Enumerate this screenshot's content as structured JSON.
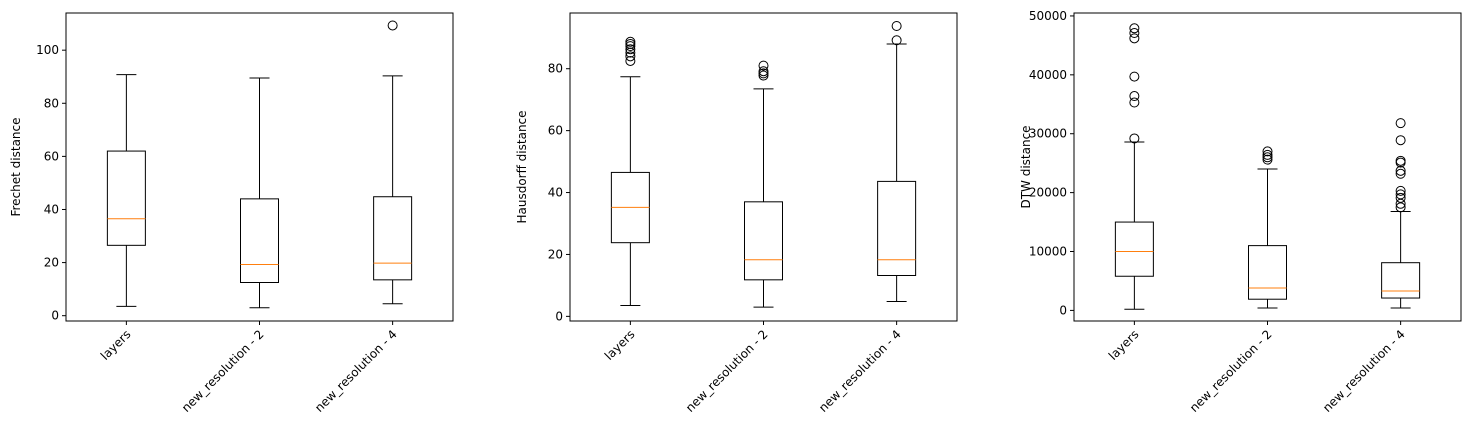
{
  "colors": {
    "median": "#ff7f0e",
    "box": "#000000",
    "background": "#ffffff"
  },
  "chart_data": [
    {
      "type": "box",
      "categories": [
        "layers",
        "new_resolution - 2",
        "new_resolution - 4"
      ],
      "ylabel": "Frechet distance",
      "xlabel": "",
      "ylim": [
        -2,
        114
      ],
      "yticks": [
        0,
        20,
        40,
        60,
        80,
        100
      ],
      "ytick_labels": [
        "0",
        "20",
        "40",
        "60",
        "80",
        "100"
      ],
      "boxes": [
        {
          "min": 3.5,
          "q1": 26.5,
          "median": 36.5,
          "q3": 62.0,
          "max": 90.8,
          "fliers": []
        },
        {
          "min": 3.0,
          "q1": 12.5,
          "median": 19.3,
          "q3": 44.0,
          "max": 89.5,
          "fliers": []
        },
        {
          "min": 4.5,
          "q1": 13.5,
          "median": 19.8,
          "q3": 44.8,
          "max": 90.3,
          "fliers": [
            109.3
          ]
        }
      ]
    },
    {
      "type": "box",
      "categories": [
        "layers",
        "new_resolution - 2",
        "new_resolution - 4"
      ],
      "ylabel": "Hausdorff distance",
      "xlabel": "",
      "ylim": [
        -1.5,
        98
      ],
      "yticks": [
        0,
        20,
        40,
        60,
        80
      ],
      "ytick_labels": [
        "0",
        "20",
        "40",
        "60",
        "80"
      ],
      "boxes": [
        {
          "min": 3.5,
          "q1": 23.8,
          "median": 35.2,
          "q3": 46.5,
          "max": 77.4,
          "fliers": [
            82.5,
            84.0,
            85.2,
            86.3,
            87.3,
            88.0,
            88.7
          ]
        },
        {
          "min": 3.0,
          "q1": 11.8,
          "median": 18.3,
          "q3": 37.0,
          "max": 73.5,
          "fliers": [
            77.8,
            78.5,
            79.2,
            81.0
          ]
        },
        {
          "min": 4.8,
          "q1": 13.2,
          "median": 18.3,
          "q3": 43.6,
          "max": 88.0,
          "fliers": [
            89.2,
            93.8
          ]
        }
      ]
    },
    {
      "type": "box",
      "categories": [
        "layers",
        "new_resolution - 2",
        "new_resolution - 4"
      ],
      "ylabel": "DTW distance",
      "xlabel": "",
      "ylim": [
        -1800,
        50500
      ],
      "yticks": [
        0,
        10000,
        20000,
        30000,
        40000,
        50000
      ],
      "ytick_labels": [
        "0",
        "10000",
        "20000",
        "30000",
        "40000",
        "50000"
      ],
      "boxes": [
        {
          "min": 200,
          "q1": 5800,
          "median": 10000,
          "q3": 15000,
          "max": 28600,
          "fliers": [
            29200,
            35300,
            36400,
            39700,
            46200,
            47100,
            47900
          ]
        },
        {
          "min": 400,
          "q1": 1900,
          "median": 3800,
          "q3": 11000,
          "max": 24000,
          "fliers": [
            25600,
            26000,
            26400,
            27000
          ]
        },
        {
          "min": 400,
          "q1": 2100,
          "median": 3300,
          "q3": 8100,
          "max": 16800,
          "fliers": [
            17500,
            18100,
            19100,
            19700,
            20300,
            23200,
            23700,
            25100,
            25400,
            28900,
            31800
          ]
        }
      ]
    }
  ]
}
